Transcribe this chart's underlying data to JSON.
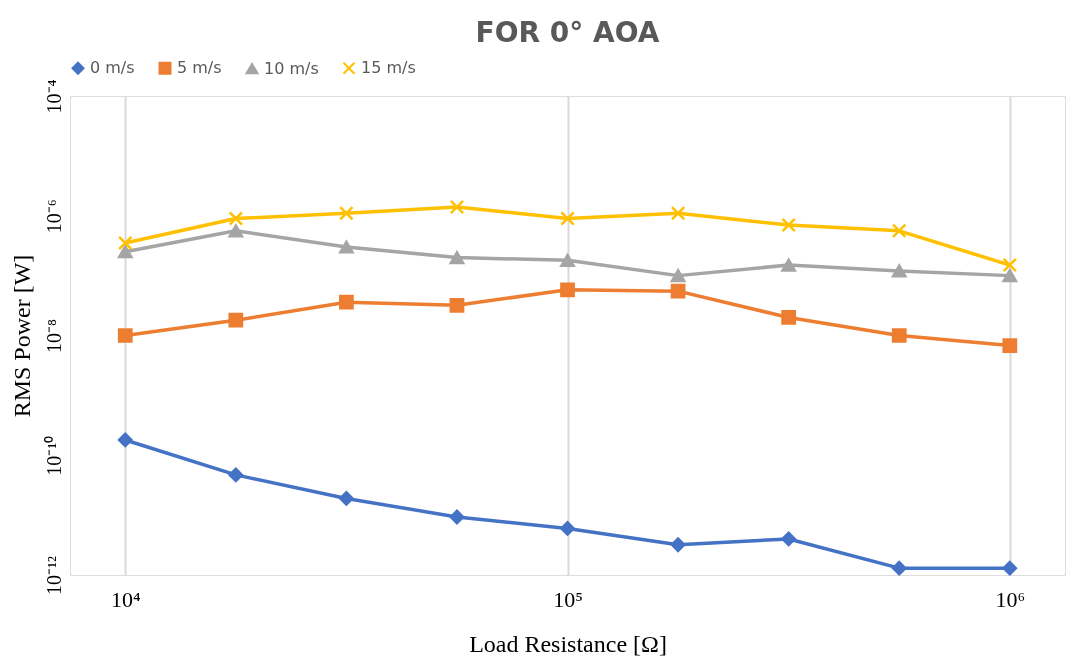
{
  "chart_data": {
    "type": "line",
    "title": "FOR 0° AOA",
    "xlabel": "Load Resistance [Ω]",
    "ylabel": "RMS Power [W]",
    "x": [
      10000,
      17783,
      31623,
      56234,
      100000,
      177828,
      316228,
      562341,
      1000000
    ],
    "log": "xy",
    "xlim": [
      7500,
      1333000
    ],
    "ylim": [
      1e-12,
      0.0001
    ],
    "xticks": [
      {
        "value": 10000,
        "label": "10⁴"
      },
      {
        "value": 100000,
        "label": "10⁵"
      },
      {
        "value": 1000000,
        "label": "10⁶"
      }
    ],
    "yticks": [
      {
        "value": 1e-12,
        "label": "10⁻¹²"
      },
      {
        "value": 1e-10,
        "label": "10⁻¹⁰"
      },
      {
        "value": 1e-08,
        "label": "10⁻⁸"
      },
      {
        "value": 1e-06,
        "label": "10⁻⁶"
      },
      {
        "value": 0.0001,
        "label": "10⁻⁴"
      }
    ],
    "grid": "x",
    "legend": "top",
    "series": [
      {
        "name": "0 m/s",
        "color": "#4472c4",
        "marker": "diamond",
        "values": [
          1.8e-10,
          4.7e-11,
          1.9e-11,
          9.3e-12,
          6e-12,
          3.2e-12,
          4e-12,
          1.3e-12,
          1.3e-12
        ]
      },
      {
        "name": "5 m/s",
        "color": "#ed7d31",
        "marker": "square",
        "values": [
          1e-08,
          1.8e-08,
          3.6e-08,
          3.2e-08,
          5.8e-08,
          5.5e-08,
          2e-08,
          1e-08,
          6.8e-09
        ]
      },
      {
        "name": "10 m/s",
        "color": "#a5a5a5",
        "marker": "triangle",
        "values": [
          2.5e-07,
          5.6e-07,
          3e-07,
          2e-07,
          1.8e-07,
          1e-07,
          1.5e-07,
          1.2e-07,
          1e-07
        ]
      },
      {
        "name": "15 m/s",
        "color": "#ffc000",
        "marker": "cross",
        "values": [
          3.5e-07,
          9e-07,
          1.1e-06,
          1.4e-06,
          9e-07,
          1.1e-06,
          7e-07,
          5.6e-07,
          1.5e-07
        ]
      }
    ]
  }
}
